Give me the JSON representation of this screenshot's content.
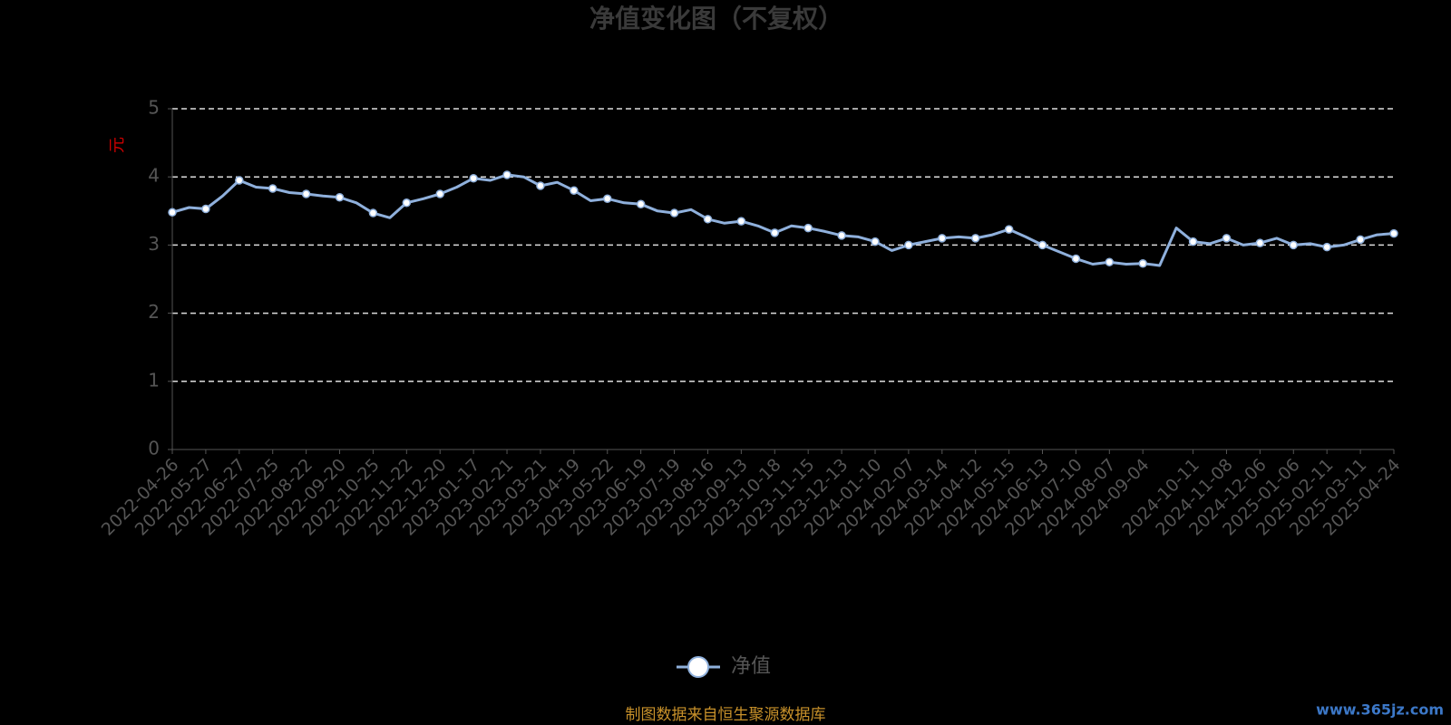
{
  "chart_data": {
    "type": "line",
    "title": "净值变化图（不复权）",
    "y_label": "元",
    "categories": [
      "2022-04-26",
      null,
      "2022-05-27",
      null,
      "2022-06-27",
      null,
      "2022-07-25",
      null,
      "2022-08-22",
      null,
      "2022-09-20",
      null,
      "2022-10-25",
      null,
      "2022-11-22",
      null,
      "2022-12-20",
      null,
      "2023-01-17",
      null,
      "2023-02-21",
      null,
      "2023-03-21",
      null,
      "2023-04-19",
      null,
      "2023-05-22",
      null,
      "2023-06-19",
      null,
      "2023-07-19",
      null,
      "2023-08-16",
      null,
      "2023-09-13",
      null,
      "2023-10-18",
      null,
      "2023-11-15",
      null,
      "2023-12-13",
      null,
      "2024-01-10",
      null,
      "2024-02-07",
      null,
      "2024-03-14",
      null,
      "2024-04-12",
      null,
      "2024-05-15",
      null,
      "2024-06-13",
      null,
      "2024-07-10",
      null,
      "2024-08-07",
      null,
      "2024-09-04",
      null,
      null,
      "2024-10-11",
      null,
      "2024-11-08",
      null,
      "2024-12-06",
      null,
      "2025-01-06",
      null,
      "2025-02-11",
      null,
      "2025-03-11",
      null,
      "2025-04-24"
    ],
    "series": [
      {
        "name": "净值",
        "color": "#8fb0dc",
        "values": [
          3.48,
          3.55,
          3.53,
          3.72,
          3.95,
          3.85,
          3.83,
          3.77,
          3.75,
          3.72,
          3.7,
          3.62,
          3.47,
          3.4,
          3.62,
          3.68,
          3.75,
          3.85,
          3.98,
          3.95,
          4.03,
          4.0,
          3.87,
          3.92,
          3.8,
          3.65,
          3.68,
          3.62,
          3.6,
          3.5,
          3.47,
          3.52,
          3.38,
          3.32,
          3.35,
          3.28,
          3.18,
          3.28,
          3.25,
          3.2,
          3.14,
          3.12,
          3.05,
          2.92,
          3.0,
          3.05,
          3.1,
          3.12,
          3.1,
          3.15,
          3.23,
          3.12,
          3.0,
          2.9,
          2.8,
          2.72,
          2.75,
          2.72,
          2.73,
          2.7,
          3.25,
          3.05,
          3.02,
          3.1,
          3.0,
          3.03,
          3.1,
          3.0,
          3.02,
          2.97,
          3.0,
          3.08,
          3.15,
          3.17
        ]
      }
    ],
    "ylim": [
      0,
      5
    ],
    "yticks": [
      0,
      1,
      2,
      3,
      4,
      5
    ],
    "grid": true
  },
  "footer": "制图数据来自恒生聚源数据库",
  "watermark": "www.365jz.com"
}
